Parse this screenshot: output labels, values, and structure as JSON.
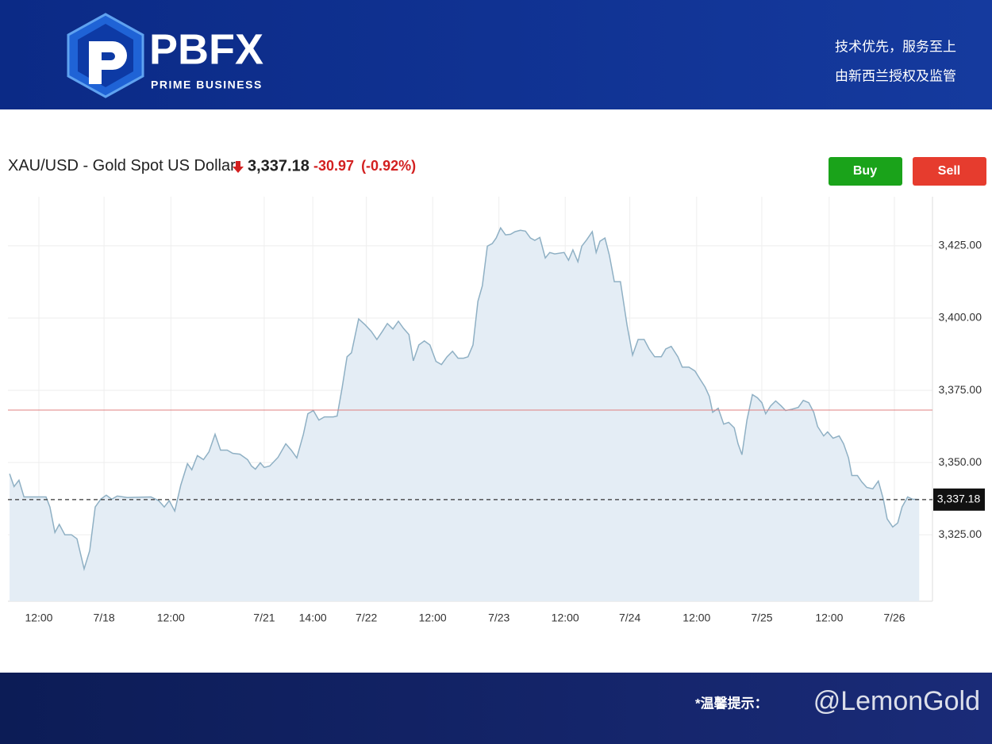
{
  "header": {
    "brand": "PBFX",
    "tagline": "PRIME BUSINESS",
    "slogan": "技术优先，服务至上",
    "regulation": "由新西兰授权及监管"
  },
  "buttons": {
    "buy": "Buy",
    "sell": "Sell"
  },
  "footer": {
    "note": "*温馨提示：",
    "watermark": "@LemonGold"
  },
  "chart_data": {
    "type": "area",
    "title": "XAU/USD - Gold Spot US Dollar",
    "price": {
      "value": 3337.18,
      "label": "3,337.18"
    },
    "change": -30.97,
    "change_percent": {
      "value": -0.92,
      "label": "(-0.92%)"
    },
    "previous_close": 3368.15,
    "color": "#8fb0c4",
    "fill": "#e4edf5",
    "grid": true,
    "xlim": [
      0,
      167.4
    ],
    "ylim": [
      3302,
      3442
    ],
    "xticks": [
      {
        "value": 5.6,
        "label": "12:00"
      },
      {
        "value": 17.4,
        "label": "7/18"
      },
      {
        "value": 29.5,
        "label": "12:00"
      },
      {
        "value": 46.4,
        "label": "7/21"
      },
      {
        "value": 55.2,
        "label": "14:00"
      },
      {
        "value": 64.9,
        "label": "7/22"
      },
      {
        "value": 76.9,
        "label": "12:00"
      },
      {
        "value": 88.9,
        "label": "7/23"
      },
      {
        "value": 100.9,
        "label": "12:00"
      },
      {
        "value": 112.6,
        "label": "7/24"
      },
      {
        "value": 124.7,
        "label": "12:00"
      },
      {
        "value": 136.5,
        "label": "7/25"
      },
      {
        "value": 148.7,
        "label": "12:00"
      },
      {
        "value": 160.5,
        "label": "7/26"
      }
    ],
    "yticks": [
      {
        "value": 3325,
        "label": "3,325.00"
      },
      {
        "value": 3350,
        "label": "3,350.00"
      },
      {
        "value": 3375,
        "label": "3,375.00"
      },
      {
        "value": 3400,
        "label": "3,400.00"
      },
      {
        "value": 3425,
        "label": "3,425.00"
      }
    ],
    "x": [
      0.3,
      1.1,
      2.0,
      2.9,
      6.9,
      7.6,
      8.5,
      9.3,
      10.3,
      11.5,
      12.5,
      13.8,
      14.8,
      15.8,
      16.8,
      17.8,
      18.8,
      19.8,
      21.6,
      25.9,
      27.3,
      28.3,
      29.2,
      30.2,
      31.3,
      32.5,
      33.3,
      34.3,
      35.4,
      36.4,
      37.5,
      38.5,
      39.7,
      40.7,
      42.0,
      43.4,
      44.1,
      44.8,
      45.7,
      46.4,
      47.4,
      48.9,
      50.3,
      51.3,
      52.3,
      53.5,
      54.3,
      55.3,
      56.3,
      57.3,
      58.9,
      59.6,
      60.5,
      61.4,
      62.2,
      63.5,
      64.7,
      65.8,
      66.8,
      67.8,
      68.7,
      69.7,
      70.7,
      71.6,
      72.6,
      73.4,
      74.4,
      75.4,
      76.4,
      77.5,
      78.5,
      79.5,
      80.5,
      81.5,
      82.5,
      83.3,
      84.2,
      85.1,
      85.9,
      86.8,
      87.7,
      88.4,
      89.2,
      90.1,
      91.0,
      91.8,
      92.8,
      93.7,
      94.6,
      95.4,
      96.3,
      97.3,
      98.1,
      99.0,
      100.7,
      101.5,
      102.3,
      103.2,
      103.9,
      104.8,
      105.8,
      106.5,
      107.2,
      108.1,
      108.9,
      109.8,
      110.9,
      112.1,
      113.1,
      114.1,
      115.2,
      116.1,
      117.1,
      118.3,
      119.1,
      120.1,
      121.3,
      122.1,
      123.3,
      124.4,
      125.3,
      126.2,
      127.0,
      127.6,
      128.6,
      129.6,
      130.5,
      131.5,
      132.2,
      132.9,
      133.8,
      134.8,
      135.7,
      136.5,
      137.2,
      138.1,
      139.0,
      140.0,
      140.8,
      142.0,
      143.1,
      144.0,
      145.0,
      145.9,
      146.6,
      147.7,
      148.4,
      149.4,
      150.5,
      151.3,
      152.2,
      152.8,
      153.8,
      154.6,
      155.5,
      156.6,
      157.6,
      158.5,
      159.2,
      160.2,
      161.1,
      161.9,
      162.9,
      163.8,
      165.0
    ],
    "values": [
      3346.1,
      3341.7,
      3343.9,
      3338.1,
      3338.1,
      3334.6,
      3325.8,
      3328.6,
      3325.0,
      3325.0,
      3323.6,
      3313.2,
      3319.5,
      3334.6,
      3337.3,
      3338.7,
      3337.3,
      3338.4,
      3337.9,
      3338.1,
      3336.8,
      3334.6,
      3336.8,
      3333.2,
      3342.2,
      3349.6,
      3347.5,
      3352.4,
      3351.0,
      3353.7,
      3359.8,
      3354.3,
      3354.3,
      3353.2,
      3352.9,
      3351.0,
      3348.8,
      3347.7,
      3349.9,
      3348.3,
      3348.8,
      3351.8,
      3356.5,
      3354.3,
      3351.6,
      3359.8,
      3366.9,
      3368.0,
      3364.7,
      3365.8,
      3365.8,
      3366.1,
      3375.7,
      3386.6,
      3388.0,
      3399.7,
      3397.6,
      3395.4,
      3392.6,
      3395.4,
      3398.1,
      3396.2,
      3398.9,
      3396.5,
      3394.3,
      3385.2,
      3390.7,
      3392.1,
      3390.7,
      3385.0,
      3383.9,
      3386.6,
      3388.5,
      3386.1,
      3386.1,
      3386.6,
      3390.7,
      3405.8,
      3411.2,
      3424.9,
      3425.8,
      3427.7,
      3431.2,
      3428.8,
      3429.0,
      3429.9,
      3430.4,
      3430.1,
      3427.7,
      3426.9,
      3427.9,
      3420.8,
      3422.7,
      3422.2,
      3422.7,
      3420.0,
      3423.6,
      3419.5,
      3424.9,
      3427.1,
      3429.9,
      3422.7,
      3426.6,
      3427.7,
      3421.7,
      3412.6,
      3412.6,
      3397.6,
      3387.2,
      3392.6,
      3392.6,
      3389.3,
      3386.6,
      3386.6,
      3389.3,
      3390.2,
      3386.6,
      3383.0,
      3383.0,
      3381.7,
      3378.9,
      3376.2,
      3372.9,
      3367.4,
      3368.8,
      3363.3,
      3363.9,
      3362.0,
      3356.5,
      3352.7,
      3364.7,
      3373.5,
      3372.4,
      3370.7,
      3366.9,
      3369.6,
      3371.3,
      3369.6,
      3368.0,
      3368.5,
      3369.1,
      3371.5,
      3370.7,
      3367.4,
      3362.5,
      3359.2,
      3360.6,
      3358.4,
      3359.2,
      3356.5,
      3351.6,
      3345.5,
      3345.5,
      3343.3,
      3341.4,
      3340.9,
      3343.6,
      3337.3,
      3330.5,
      3327.7,
      3329.1,
      3334.6,
      3338.1,
      3337.3,
      3337.2
    ]
  }
}
